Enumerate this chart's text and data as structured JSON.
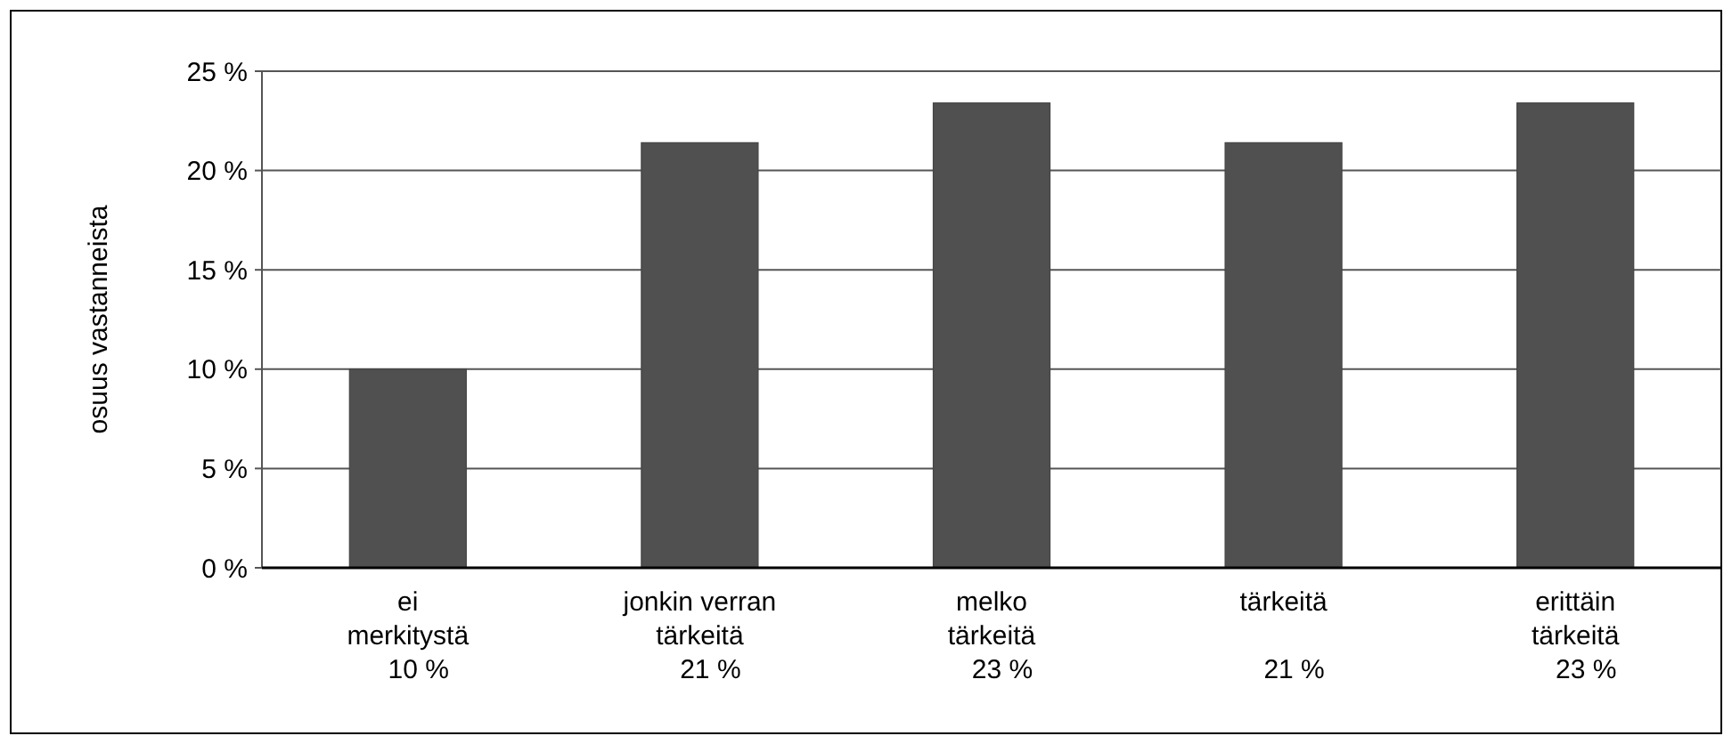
{
  "chart_data": {
    "type": "bar",
    "ylabel": "osuus vastanneista",
    "categories": [
      "ei\nmerkitystä",
      "jonkin verran\ntärkeitä",
      "melko\ntärkeitä",
      "tärkeitä",
      "erittäin\ntärkeitä"
    ],
    "values": [
      10.0,
      21.4,
      23.4,
      21.4,
      23.4
    ],
    "value_labels": [
      "10 %",
      "21 %",
      "23 %",
      "21 %",
      "23 %"
    ],
    "color": "#505050",
    "ylim": [
      0,
      25
    ],
    "yticks": [
      {
        "value": 0,
        "label": "0 %"
      },
      {
        "value": 5,
        "label": "5 %"
      },
      {
        "value": 10,
        "label": "10 %"
      },
      {
        "value": 15,
        "label": "15 %"
      },
      {
        "value": 20,
        "label": "20 %"
      },
      {
        "value": 25,
        "label": "25 %"
      }
    ],
    "grid": "y"
  }
}
